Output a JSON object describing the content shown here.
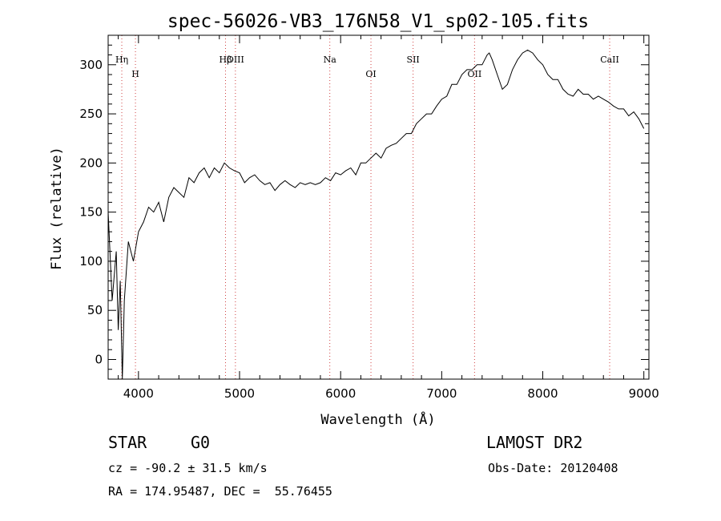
{
  "chart_data": {
    "type": "line",
    "title": "spec-56026-VB3_176N58_V1_sp02-105.fits",
    "xlabel": "Wavelength (Å)",
    "ylabel": "Flux (relative)",
    "xlim": [
      3700,
      9050
    ],
    "ylim": [
      -20,
      330
    ],
    "xticks": [
      4000,
      5000,
      6000,
      7000,
      8000,
      9000
    ],
    "yticks": [
      0,
      50,
      100,
      150,
      200,
      250,
      300
    ],
    "grid": false,
    "series": [
      {
        "x": [
          3700,
          3740,
          3780,
          3800,
          3820,
          3840,
          3860,
          3880,
          3900,
          3950,
          4000,
          4050,
          4100,
          4150,
          4200,
          4250,
          4300,
          4350,
          4400,
          4450,
          4500,
          4550,
          4600,
          4650,
          4700,
          4750,
          4800,
          4850,
          4900,
          4950,
          5000,
          5050,
          5100,
          5150,
          5200,
          5250,
          5300,
          5350,
          5400,
          5450,
          5500,
          5550,
          5600,
          5650,
          5700,
          5750,
          5800,
          5850,
          5900,
          5950,
          6000,
          6050,
          6100,
          6150,
          6200,
          6250,
          6300,
          6350,
          6400,
          6450,
          6500,
          6550,
          6600,
          6650,
          6700,
          6750,
          6800,
          6850,
          6900,
          6950,
          7000,
          7050,
          7100,
          7150,
          7200,
          7250,
          7300,
          7350,
          7400,
          7450,
          7470,
          7500,
          7550,
          7600,
          7650,
          7700,
          7750,
          7800,
          7850,
          7900,
          7950,
          8000,
          8050,
          8100,
          8150,
          8200,
          8250,
          8300,
          8350,
          8400,
          8450,
          8500,
          8550,
          8600,
          8650,
          8700,
          8750,
          8800,
          8850,
          8900,
          8950,
          9000
        ],
        "values": [
          150,
          60,
          110,
          30,
          80,
          -20,
          60,
          90,
          120,
          100,
          130,
          140,
          155,
          150,
          160,
          140,
          165,
          175,
          170,
          165,
          185,
          180,
          190,
          195,
          185,
          195,
          190,
          200,
          195,
          192,
          190,
          180,
          185,
          188,
          182,
          178,
          180,
          172,
          178,
          182,
          178,
          175,
          180,
          178,
          180,
          178,
          180,
          185,
          182,
          190,
          188,
          192,
          195,
          188,
          200,
          200,
          205,
          210,
          205,
          215,
          218,
          220,
          225,
          230,
          230,
          240,
          245,
          250,
          250,
          258,
          265,
          268,
          280,
          280,
          290,
          295,
          295,
          300,
          300,
          310,
          312,
          305,
          290,
          275,
          280,
          295,
          305,
          312,
          315,
          312,
          305,
          300,
          290,
          285,
          285,
          275,
          270,
          268,
          275,
          270,
          270,
          265,
          268,
          265,
          262,
          258,
          255,
          255,
          248,
          252,
          245,
          235
        ]
      }
    ],
    "line_labels": [
      {
        "text": "Hη",
        "x": 3835
      },
      {
        "text": "H",
        "x": 3970
      },
      {
        "text": "Hβ",
        "x": 4861
      },
      {
        "text": "OIII",
        "x": 4959
      },
      {
        "text": "Na",
        "x": 5893
      },
      {
        "text": "OI",
        "x": 6300
      },
      {
        "text": "SII",
        "x": 6717
      },
      {
        "text": "OII",
        "x": 7325
      },
      {
        "text": "CaII",
        "x": 8662
      }
    ]
  },
  "info": {
    "object_class": "STAR",
    "subclass": "G0",
    "survey": "LAMOST DR2",
    "cz_label": "cz =",
    "cz_value": "-90.2 ± 31.5 km/s",
    "obs_date_label": "Obs-Date:",
    "obs_date_value": "20120408",
    "ra_label": "RA =",
    "ra_value": "174.95487,",
    "dec_label": "DEC =",
    "dec_value": "55.76455"
  }
}
